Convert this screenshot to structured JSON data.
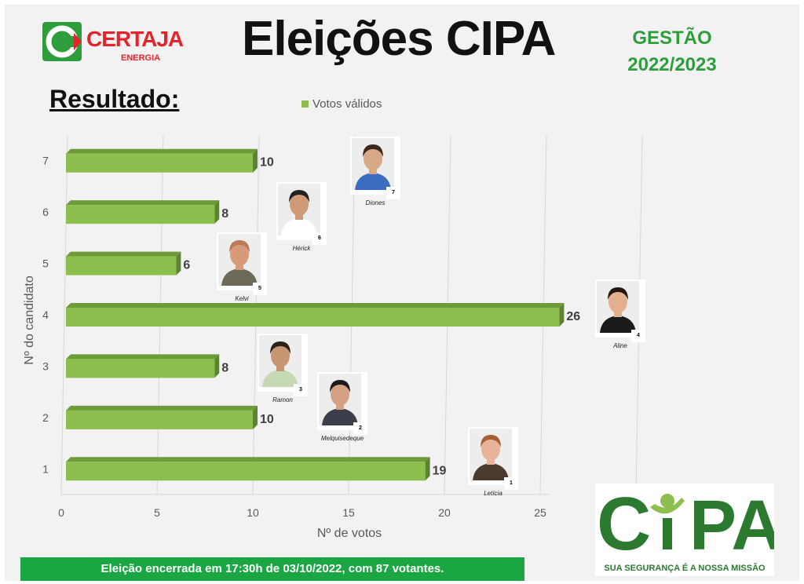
{
  "header": {
    "logo_text": "CERTAJA",
    "logo_sub": "ENERGIA",
    "title": "Eleições CIPA",
    "gestao_label": "GESTÃO",
    "gestao_years": "2022/2023",
    "resultado": "Resultado:"
  },
  "legend": {
    "label": "Votos válidos"
  },
  "colors": {
    "bar": "#8dbf4e",
    "bar_top": "#6f9a3a",
    "bar_side": "#5d8330",
    "footer": "#1aa743",
    "title_green": "#2e9e3c",
    "cipa_green": "#2c7a2f"
  },
  "chart_data": {
    "type": "bar",
    "orientation": "horizontal",
    "categories": [
      "1",
      "2",
      "3",
      "4",
      "5",
      "6",
      "7"
    ],
    "series": [
      {
        "name": "Votos válidos",
        "values": [
          19,
          10,
          8,
          26,
          6,
          8,
          10
        ]
      }
    ],
    "xlabel": "Nº de votos",
    "ylabel": "Nº do candidato",
    "xlim": [
      0,
      30
    ],
    "xticks": [
      "0",
      "5",
      "10",
      "15",
      "20",
      "25",
      "30"
    ],
    "grid": true,
    "legend": "top",
    "data_labels": [
      "19",
      "10",
      "8",
      "26",
      "6",
      "8",
      "10"
    ]
  },
  "candidates": [
    {
      "number": "7",
      "name": "Diones"
    },
    {
      "number": "6",
      "name": "Hérick"
    },
    {
      "number": "5",
      "name": "Kelvi"
    },
    {
      "number": "4",
      "name": "Aline"
    },
    {
      "number": "3",
      "name": "Ramon"
    },
    {
      "number": "2",
      "name": "Melquisedeque"
    },
    {
      "number": "1",
      "name": "Letícia"
    }
  ],
  "cipa_logo": {
    "text": "CIPA",
    "tagline": "SUA SEGURANÇA É A NOSSA MISSÃO"
  },
  "footer": {
    "text": "Eleição encerrada em 17:30h de 03/10/2022, com 87 votantes."
  }
}
